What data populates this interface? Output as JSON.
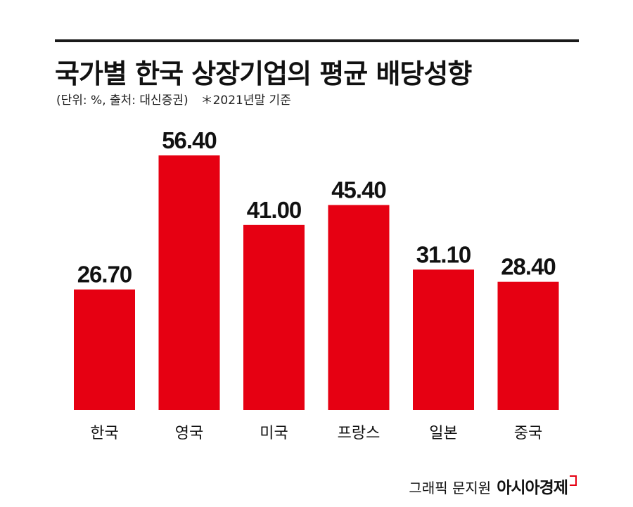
{
  "header": {
    "title": "국가별 한국 상장기업의 평균 배당성향",
    "unit_source": "(단위: %, 출처: 대신증권)",
    "note": "＊2021년말 기준"
  },
  "footer": {
    "credit": "그래픽 문지원",
    "brand": "아시아경제"
  },
  "colors": {
    "bar": "#e60012",
    "rule": "#1a1a1a"
  },
  "chart_data": {
    "type": "bar",
    "title": "국가별 한국 상장기업의 평균 배당성향",
    "categories": [
      "한국",
      "영국",
      "미국",
      "프랑스",
      "일본",
      "중국"
    ],
    "values": [
      26.7,
      56.4,
      41.0,
      45.4,
      31.1,
      28.4
    ],
    "value_labels": [
      "26.70",
      "56.40",
      "41.00",
      "45.40",
      "31.10",
      "28.40"
    ],
    "xlabel": "",
    "ylabel": "",
    "ylim": [
      0,
      56.4
    ],
    "grid": false,
    "legend": "none"
  }
}
